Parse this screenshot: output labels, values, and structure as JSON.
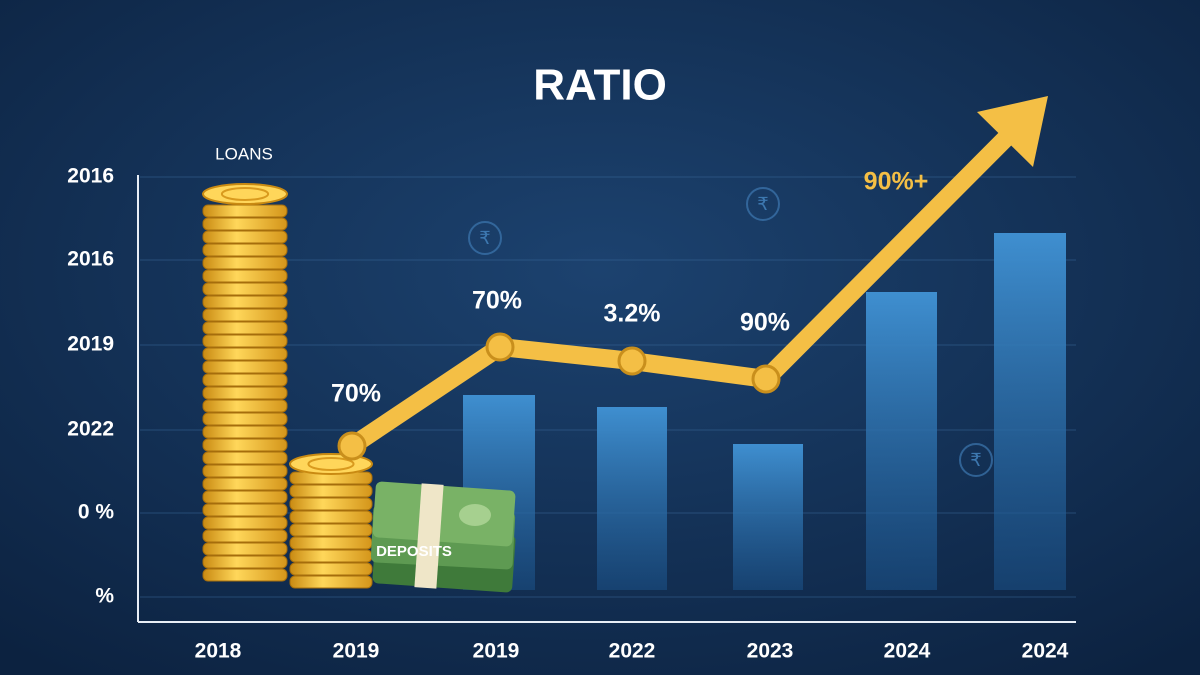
{
  "title": "RATIO",
  "y_axis_labels": [
    "2016",
    "2016",
    "2019",
    "2022",
    "0 %",
    "%"
  ],
  "x_axis_labels": [
    "2018",
    "2019",
    "2019",
    "2022",
    "2023",
    "2024",
    "2024"
  ],
  "point_labels": [
    "70%",
    "70%",
    "3.2%",
    "90%"
  ],
  "arrow_label": "90%+",
  "loans_label": "LOANS",
  "deposits_label": "DEPOSITS",
  "currency_symbol": "₹"
}
